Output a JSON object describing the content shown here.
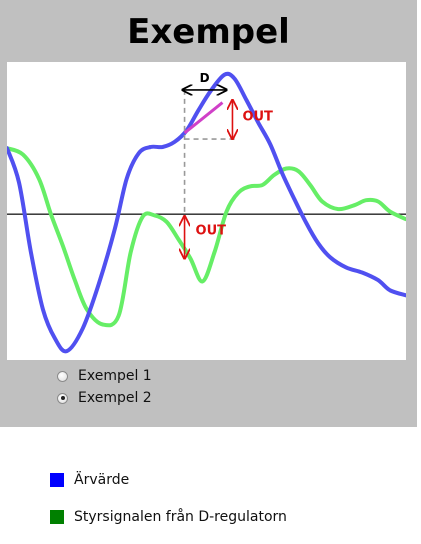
{
  "title": "Exempel",
  "options": [
    {
      "label": "Exempel 1",
      "selected": false
    },
    {
      "label": "Exempel 2",
      "selected": true
    }
  ],
  "legend": [
    {
      "label": "Ärvärde",
      "color": "#0000ff"
    },
    {
      "label": "Styrsignalen från D-regulatorn",
      "color": "#008000"
    }
  ],
  "chart_data": {
    "type": "line",
    "title": "Exempel",
    "xlabel": "",
    "ylabel": "",
    "grid": false,
    "series": [
      {
        "name": "Ärvärde",
        "color": "#5050f0",
        "points": [
          [
            0,
            0.52
          ],
          [
            0.03,
            0.25
          ],
          [
            0.06,
            -0.3
          ],
          [
            0.09,
            -0.75
          ],
          [
            0.12,
            -0.98
          ],
          [
            0.15,
            -1.08
          ],
          [
            0.19,
            -0.9
          ],
          [
            0.23,
            -0.55
          ],
          [
            0.27,
            -0.12
          ],
          [
            0.3,
            0.28
          ],
          [
            0.33,
            0.48
          ],
          [
            0.36,
            0.53
          ],
          [
            0.39,
            0.53
          ],
          [
            0.42,
            0.57
          ],
          [
            0.45,
            0.66
          ],
          [
            0.48,
            0.82
          ],
          [
            0.51,
            0.97
          ],
          [
            0.545,
            1.1
          ],
          [
            0.57,
            1.07
          ],
          [
            0.6,
            0.9
          ],
          [
            0.63,
            0.72
          ],
          [
            0.66,
            0.55
          ],
          [
            0.69,
            0.32
          ],
          [
            0.72,
            0.12
          ],
          [
            0.75,
            -0.07
          ],
          [
            0.78,
            -0.23
          ],
          [
            0.81,
            -0.34
          ],
          [
            0.85,
            -0.42
          ],
          [
            0.89,
            -0.46
          ],
          [
            0.93,
            -0.52
          ],
          [
            0.96,
            -0.6
          ],
          [
            1.0,
            -0.64
          ]
        ]
      },
      {
        "name": "Styrsignalen från D-regulatorn",
        "color": "#66ee66",
        "points": [
          [
            0,
            0.52
          ],
          [
            0.04,
            0.47
          ],
          [
            0.08,
            0.28
          ],
          [
            0.11,
            0.0
          ],
          [
            0.14,
            -0.25
          ],
          [
            0.17,
            -0.52
          ],
          [
            0.2,
            -0.75
          ],
          [
            0.24,
            -0.87
          ],
          [
            0.28,
            -0.8
          ],
          [
            0.31,
            -0.3
          ],
          [
            0.34,
            -0.02
          ],
          [
            0.37,
            -0.01
          ],
          [
            0.4,
            -0.06
          ],
          [
            0.43,
            -0.2
          ],
          [
            0.46,
            -0.35
          ],
          [
            0.49,
            -0.53
          ],
          [
            0.52,
            -0.3
          ],
          [
            0.55,
            0.02
          ],
          [
            0.58,
            0.17
          ],
          [
            0.61,
            0.22
          ],
          [
            0.64,
            0.23
          ],
          [
            0.67,
            0.31
          ],
          [
            0.7,
            0.36
          ],
          [
            0.73,
            0.34
          ],
          [
            0.76,
            0.23
          ],
          [
            0.79,
            0.1
          ],
          [
            0.83,
            0.04
          ],
          [
            0.87,
            0.07
          ],
          [
            0.9,
            0.11
          ],
          [
            0.93,
            0.1
          ],
          [
            0.96,
            0.02
          ],
          [
            1.0,
            -0.04
          ]
        ]
      }
    ],
    "annotations": {
      "d_label": "D",
      "out_label": "OUT",
      "tangent_from": [
        0.445,
        0.64
      ],
      "tangent_to": [
        0.54,
        0.88
      ],
      "zero_line": 0
    },
    "xlim": [
      0,
      1
    ],
    "ylim": [
      -1.15,
      1.2
    ]
  }
}
